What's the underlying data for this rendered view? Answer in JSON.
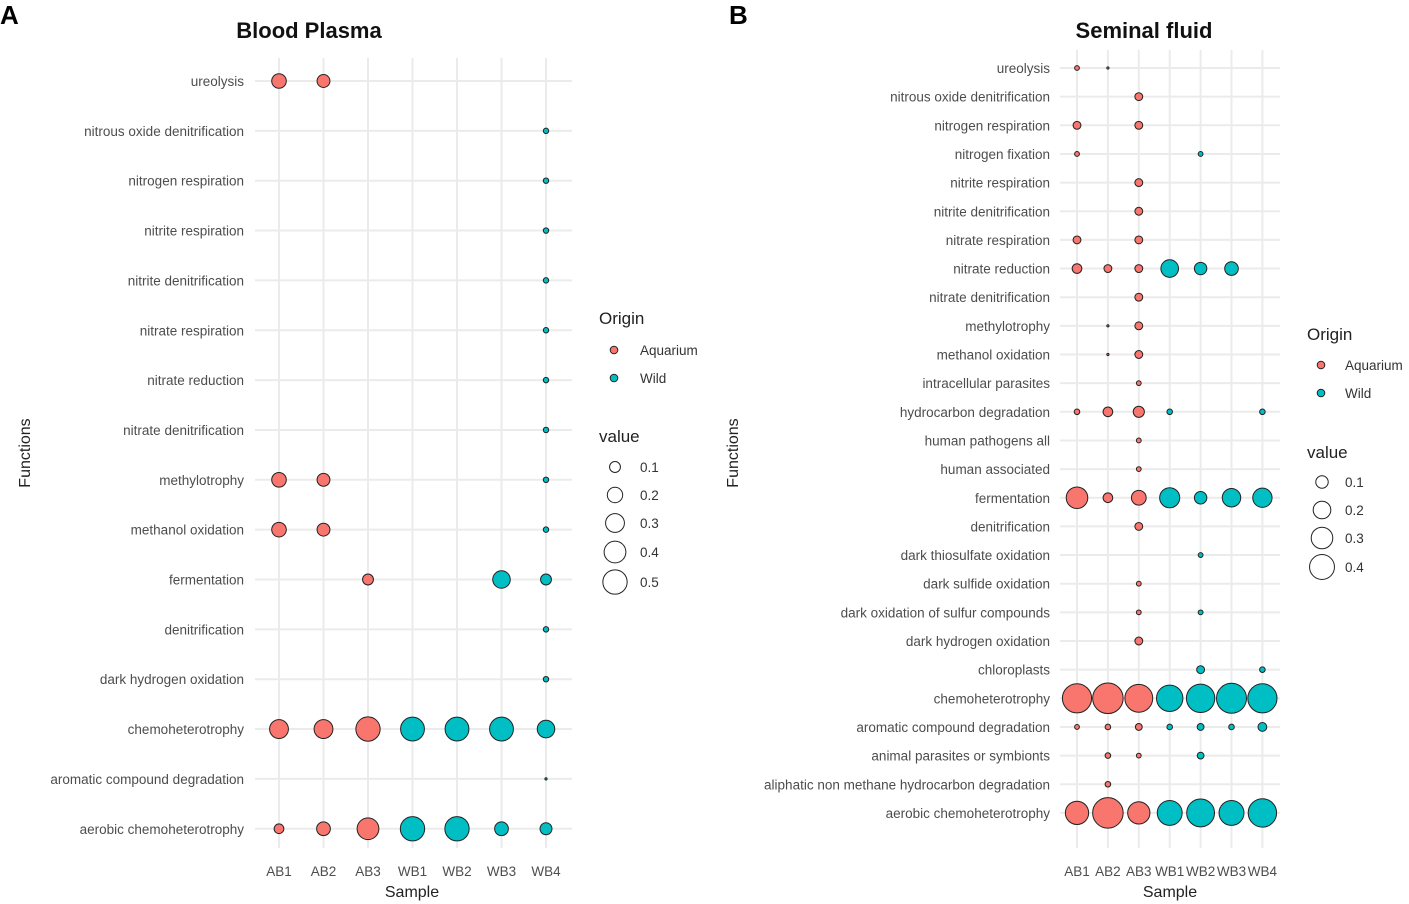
{
  "colors": {
    "Aquarium": "#F8766D",
    "Wild": "#00BFC4"
  },
  "chart_data": [
    {
      "type": "scatter",
      "panel_label": "A",
      "title": "Blood Plasma",
      "xlabel": "Sample",
      "ylabel": "Functions",
      "samples": [
        "AB1",
        "AB2",
        "AB3",
        "WB1",
        "WB2",
        "WB3",
        "WB4"
      ],
      "functions": [
        "ureolysis",
        "nitrous oxide denitrification",
        "nitrogen respiration",
        "nitrite respiration",
        "nitrite denitrification",
        "nitrate respiration",
        "nitrate reduction",
        "nitrate denitrification",
        "methylotrophy",
        "methanol oxidation",
        "fermentation",
        "denitrification",
        "dark hydrogen oxidation",
        "chemoheterotrophy",
        "aromatic compound degradation",
        "aerobic chemoheterotrophy"
      ],
      "legend": {
        "origin_title": "Origin",
        "origin_items": [
          {
            "label": "Aquarium",
            "key": "Aquarium"
          },
          {
            "label": "Wild",
            "key": "Wild"
          }
        ],
        "value_title": "value",
        "value_items": [
          {
            "label": "0.1",
            "v": 0.1
          },
          {
            "label": "0.2",
            "v": 0.2
          },
          {
            "label": "0.3",
            "v": 0.3
          },
          {
            "label": "0.4",
            "v": 0.4
          },
          {
            "label": "0.5",
            "v": 0.5
          }
        ]
      },
      "points": [
        {
          "sample": "AB1",
          "function": "ureolysis",
          "value": 0.18,
          "origin": "Aquarium"
        },
        {
          "sample": "AB2",
          "function": "ureolysis",
          "value": 0.14,
          "origin": "Aquarium"
        },
        {
          "sample": "WB4",
          "function": "nitrous oxide denitrification",
          "value": 0.025,
          "origin": "Wild"
        },
        {
          "sample": "WB4",
          "function": "nitrogen respiration",
          "value": 0.025,
          "origin": "Wild"
        },
        {
          "sample": "WB4",
          "function": "nitrite respiration",
          "value": 0.025,
          "origin": "Wild"
        },
        {
          "sample": "WB4",
          "function": "nitrite denitrification",
          "value": 0.025,
          "origin": "Wild"
        },
        {
          "sample": "WB4",
          "function": "nitrate respiration",
          "value": 0.025,
          "origin": "Wild"
        },
        {
          "sample": "WB4",
          "function": "nitrate reduction",
          "value": 0.025,
          "origin": "Wild"
        },
        {
          "sample": "WB4",
          "function": "nitrate denitrification",
          "value": 0.025,
          "origin": "Wild"
        },
        {
          "sample": "AB1",
          "function": "methylotrophy",
          "value": 0.18,
          "origin": "Aquarium"
        },
        {
          "sample": "AB2",
          "function": "methylotrophy",
          "value": 0.14,
          "origin": "Aquarium"
        },
        {
          "sample": "WB4",
          "function": "methylotrophy",
          "value": 0.025,
          "origin": "Wild"
        },
        {
          "sample": "AB1",
          "function": "methanol oxidation",
          "value": 0.18,
          "origin": "Aquarium"
        },
        {
          "sample": "AB2",
          "function": "methanol oxidation",
          "value": 0.14,
          "origin": "Aquarium"
        },
        {
          "sample": "WB4",
          "function": "methanol oxidation",
          "value": 0.025,
          "origin": "Wild"
        },
        {
          "sample": "AB3",
          "function": "fermentation",
          "value": 0.1,
          "origin": "Aquarium"
        },
        {
          "sample": "WB3",
          "function": "fermentation",
          "value": 0.26,
          "origin": "Wild"
        },
        {
          "sample": "WB4",
          "function": "fermentation",
          "value": 0.1,
          "origin": "Wild"
        },
        {
          "sample": "WB4",
          "function": "denitrification",
          "value": 0.025,
          "origin": "Wild"
        },
        {
          "sample": "WB4",
          "function": "dark hydrogen oxidation",
          "value": 0.025,
          "origin": "Wild"
        },
        {
          "sample": "AB1",
          "function": "chemoheterotrophy",
          "value": 0.3,
          "origin": "Aquarium"
        },
        {
          "sample": "AB2",
          "function": "chemoheterotrophy",
          "value": 0.3,
          "origin": "Aquarium"
        },
        {
          "sample": "AB3",
          "function": "chemoheterotrophy",
          "value": 0.5,
          "origin": "Aquarium"
        },
        {
          "sample": "WB1",
          "function": "chemoheterotrophy",
          "value": 0.48,
          "origin": "Wild"
        },
        {
          "sample": "WB2",
          "function": "chemoheterotrophy",
          "value": 0.48,
          "origin": "Wild"
        },
        {
          "sample": "WB3",
          "function": "chemoheterotrophy",
          "value": 0.48,
          "origin": "Wild"
        },
        {
          "sample": "WB4",
          "function": "chemoheterotrophy",
          "value": 0.26,
          "origin": "Wild"
        },
        {
          "sample": "WB4",
          "function": "aromatic compound degradation",
          "value": 0.004,
          "origin": "Wild"
        },
        {
          "sample": "AB1",
          "function": "aerobic chemoheterotrophy",
          "value": 0.08,
          "origin": "Aquarium"
        },
        {
          "sample": "AB2",
          "function": "aerobic chemoheterotrophy",
          "value": 0.16,
          "origin": "Aquarium"
        },
        {
          "sample": "AB3",
          "function": "aerobic chemoheterotrophy",
          "value": 0.4,
          "origin": "Aquarium"
        },
        {
          "sample": "WB1",
          "function": "aerobic chemoheterotrophy",
          "value": 0.5,
          "origin": "Wild"
        },
        {
          "sample": "WB2",
          "function": "aerobic chemoheterotrophy",
          "value": 0.5,
          "origin": "Wild"
        },
        {
          "sample": "WB3",
          "function": "aerobic chemoheterotrophy",
          "value": 0.16,
          "origin": "Wild"
        },
        {
          "sample": "WB4",
          "function": "aerobic chemoheterotrophy",
          "value": 0.12,
          "origin": "Wild"
        }
      ]
    },
    {
      "type": "scatter",
      "panel_label": "B",
      "title": "Seminal fluid",
      "xlabel": "Sample",
      "ylabel": "Functions",
      "samples": [
        "AB1",
        "AB2",
        "AB3",
        "WB1",
        "WB2",
        "WB3",
        "WB4"
      ],
      "functions": [
        "ureolysis",
        "nitrous oxide denitrification",
        "nitrogen respiration",
        "nitrogen fixation",
        "nitrite respiration",
        "nitrite denitrification",
        "nitrate respiration",
        "nitrate reduction",
        "nitrate denitrification",
        "methylotrophy",
        "methanol oxidation",
        "intracellular parasites",
        "hydrocarbon degradation",
        "human pathogens all",
        "human associated",
        "fermentation",
        "denitrification",
        "dark thiosulfate oxidation",
        "dark sulfide oxidation",
        "dark oxidation of sulfur compounds",
        "dark hydrogen oxidation",
        "chloroplasts",
        "chemoheterotrophy",
        "aromatic compound degradation",
        "animal parasites or symbionts",
        "aliphatic non methane hydrocarbon degradation",
        "aerobic chemoheterotrophy"
      ],
      "legend": {
        "origin_title": "Origin",
        "origin_items": [
          {
            "label": "Aquarium",
            "key": "Aquarium"
          },
          {
            "label": "Wild",
            "key": "Wild"
          }
        ],
        "value_title": "value",
        "value_items": [
          {
            "label": "0.1",
            "v": 0.1
          },
          {
            "label": "0.2",
            "v": 0.2
          },
          {
            "label": "0.3",
            "v": 0.3
          },
          {
            "label": "0.4",
            "v": 0.4
          }
        ]
      },
      "points": [
        {
          "sample": "AB1",
          "function": "ureolysis",
          "value": 0.015,
          "origin": "Aquarium"
        },
        {
          "sample": "AB2",
          "function": "ureolysis",
          "value": 0.003,
          "origin": "Aquarium"
        },
        {
          "sample": "AB3",
          "function": "nitrous oxide denitrification",
          "value": 0.04,
          "origin": "Aquarium"
        },
        {
          "sample": "AB1",
          "function": "nitrogen respiration",
          "value": 0.04,
          "origin": "Aquarium"
        },
        {
          "sample": "AB3",
          "function": "nitrogen respiration",
          "value": 0.04,
          "origin": "Aquarium"
        },
        {
          "sample": "AB1",
          "function": "nitrogen fixation",
          "value": 0.015,
          "origin": "Aquarium"
        },
        {
          "sample": "WB2",
          "function": "nitrogen fixation",
          "value": 0.015,
          "origin": "Wild"
        },
        {
          "sample": "AB3",
          "function": "nitrite respiration",
          "value": 0.04,
          "origin": "Aquarium"
        },
        {
          "sample": "AB3",
          "function": "nitrite denitrification",
          "value": 0.04,
          "origin": "Aquarium"
        },
        {
          "sample": "AB1",
          "function": "nitrate respiration",
          "value": 0.04,
          "origin": "Aquarium"
        },
        {
          "sample": "AB3",
          "function": "nitrate respiration",
          "value": 0.04,
          "origin": "Aquarium"
        },
        {
          "sample": "AB1",
          "function": "nitrate reduction",
          "value": 0.06,
          "origin": "Aquarium"
        },
        {
          "sample": "AB2",
          "function": "nitrate reduction",
          "value": 0.04,
          "origin": "Aquarium"
        },
        {
          "sample": "AB3",
          "function": "nitrate reduction",
          "value": 0.04,
          "origin": "Aquarium"
        },
        {
          "sample": "WB1",
          "function": "nitrate reduction",
          "value": 0.2,
          "origin": "Wild"
        },
        {
          "sample": "WB2",
          "function": "nitrate reduction",
          "value": 0.1,
          "origin": "Wild"
        },
        {
          "sample": "WB3",
          "function": "nitrate reduction",
          "value": 0.12,
          "origin": "Wild"
        },
        {
          "sample": "AB3",
          "function": "nitrate denitrification",
          "value": 0.04,
          "origin": "Aquarium"
        },
        {
          "sample": "AB2",
          "function": "methylotrophy",
          "value": 0.003,
          "origin": "Aquarium"
        },
        {
          "sample": "AB3",
          "function": "methylotrophy",
          "value": 0.04,
          "origin": "Aquarium"
        },
        {
          "sample": "AB2",
          "function": "methanol oxidation",
          "value": 0.003,
          "origin": "Aquarium"
        },
        {
          "sample": "AB3",
          "function": "methanol oxidation",
          "value": 0.04,
          "origin": "Aquarium"
        },
        {
          "sample": "AB3",
          "function": "intracellular parasites",
          "value": 0.015,
          "origin": "Aquarium"
        },
        {
          "sample": "AB1",
          "function": "hydrocarbon degradation",
          "value": 0.02,
          "origin": "Aquarium"
        },
        {
          "sample": "AB2",
          "function": "hydrocarbon degradation",
          "value": 0.06,
          "origin": "Aquarium"
        },
        {
          "sample": "AB3",
          "function": "hydrocarbon degradation",
          "value": 0.08,
          "origin": "Aquarium"
        },
        {
          "sample": "WB1",
          "function": "hydrocarbon degradation",
          "value": 0.02,
          "origin": "Wild"
        },
        {
          "sample": "WB4",
          "function": "hydrocarbon degradation",
          "value": 0.02,
          "origin": "Wild"
        },
        {
          "sample": "AB3",
          "function": "human pathogens all",
          "value": 0.015,
          "origin": "Aquarium"
        },
        {
          "sample": "AB3",
          "function": "human associated",
          "value": 0.015,
          "origin": "Aquarium"
        },
        {
          "sample": "AB1",
          "function": "fermentation",
          "value": 0.3,
          "origin": "Aquarium"
        },
        {
          "sample": "AB2",
          "function": "fermentation",
          "value": 0.06,
          "origin": "Aquarium"
        },
        {
          "sample": "AB3",
          "function": "fermentation",
          "value": 0.14,
          "origin": "Aquarium"
        },
        {
          "sample": "WB1",
          "function": "fermentation",
          "value": 0.26,
          "origin": "Wild"
        },
        {
          "sample": "WB2",
          "function": "fermentation",
          "value": 0.1,
          "origin": "Wild"
        },
        {
          "sample": "WB3",
          "function": "fermentation",
          "value": 0.22,
          "origin": "Wild"
        },
        {
          "sample": "WB4",
          "function": "fermentation",
          "value": 0.24,
          "origin": "Wild"
        },
        {
          "sample": "AB3",
          "function": "denitrification",
          "value": 0.04,
          "origin": "Aquarium"
        },
        {
          "sample": "WB2",
          "function": "dark thiosulfate oxidation",
          "value": 0.015,
          "origin": "Wild"
        },
        {
          "sample": "AB3",
          "function": "dark sulfide oxidation",
          "value": 0.015,
          "origin": "Aquarium"
        },
        {
          "sample": "AB3",
          "function": "dark oxidation of sulfur compounds",
          "value": 0.015,
          "origin": "Aquarium"
        },
        {
          "sample": "WB2",
          "function": "dark oxidation of sulfur compounds",
          "value": 0.015,
          "origin": "Wild"
        },
        {
          "sample": "AB3",
          "function": "dark hydrogen oxidation",
          "value": 0.04,
          "origin": "Aquarium"
        },
        {
          "sample": "WB2",
          "function": "chloroplasts",
          "value": 0.04,
          "origin": "Wild"
        },
        {
          "sample": "WB4",
          "function": "chloroplasts",
          "value": 0.02,
          "origin": "Wild"
        },
        {
          "sample": "AB1",
          "function": "chemoheterotrophy",
          "value": 0.55,
          "origin": "Aquarium"
        },
        {
          "sample": "AB2",
          "function": "chemoheterotrophy",
          "value": 0.6,
          "origin": "Aquarium"
        },
        {
          "sample": "AB3",
          "function": "chemoheterotrophy",
          "value": 0.5,
          "origin": "Aquarium"
        },
        {
          "sample": "WB1",
          "function": "chemoheterotrophy",
          "value": 0.45,
          "origin": "Wild"
        },
        {
          "sample": "WB2",
          "function": "chemoheterotrophy",
          "value": 0.52,
          "origin": "Wild"
        },
        {
          "sample": "WB3",
          "function": "chemoheterotrophy",
          "value": 0.58,
          "origin": "Wild"
        },
        {
          "sample": "WB4",
          "function": "chemoheterotrophy",
          "value": 0.55,
          "origin": "Wild"
        },
        {
          "sample": "AB1",
          "function": "aromatic compound degradation",
          "value": 0.015,
          "origin": "Aquarium"
        },
        {
          "sample": "AB2",
          "function": "aromatic compound degradation",
          "value": 0.02,
          "origin": "Aquarium"
        },
        {
          "sample": "AB3",
          "function": "aromatic compound degradation",
          "value": 0.03,
          "origin": "Aquarium"
        },
        {
          "sample": "WB1",
          "function": "aromatic compound degradation",
          "value": 0.02,
          "origin": "Wild"
        },
        {
          "sample": "WB2",
          "function": "aromatic compound degradation",
          "value": 0.03,
          "origin": "Wild"
        },
        {
          "sample": "WB3",
          "function": "aromatic compound degradation",
          "value": 0.02,
          "origin": "Wild"
        },
        {
          "sample": "WB4",
          "function": "aromatic compound degradation",
          "value": 0.05,
          "origin": "Wild"
        },
        {
          "sample": "AB2",
          "function": "animal parasites or symbionts",
          "value": 0.02,
          "origin": "Aquarium"
        },
        {
          "sample": "AB3",
          "function": "animal parasites or symbionts",
          "value": 0.015,
          "origin": "Aquarium"
        },
        {
          "sample": "WB2",
          "function": "animal parasites or symbionts",
          "value": 0.03,
          "origin": "Wild"
        },
        {
          "sample": "AB2",
          "function": "aliphatic non methane hydrocarbon degradation",
          "value": 0.02,
          "origin": "Aquarium"
        },
        {
          "sample": "AB1",
          "function": "aerobic chemoheterotrophy",
          "value": 0.35,
          "origin": "Aquarium"
        },
        {
          "sample": "AB2",
          "function": "aerobic chemoheterotrophy",
          "value": 0.6,
          "origin": "Aquarium"
        },
        {
          "sample": "AB3",
          "function": "aerobic chemoheterotrophy",
          "value": 0.32,
          "origin": "Aquarium"
        },
        {
          "sample": "WB1",
          "function": "aerobic chemoheterotrophy",
          "value": 0.4,
          "origin": "Wild"
        },
        {
          "sample": "WB2",
          "function": "aerobic chemoheterotrophy",
          "value": 0.5,
          "origin": "Wild"
        },
        {
          "sample": "WB3",
          "function": "aerobic chemoheterotrophy",
          "value": 0.4,
          "origin": "Wild"
        },
        {
          "sample": "WB4",
          "function": "aerobic chemoheterotrophy",
          "value": 0.52,
          "origin": "Wild"
        }
      ]
    }
  ]
}
